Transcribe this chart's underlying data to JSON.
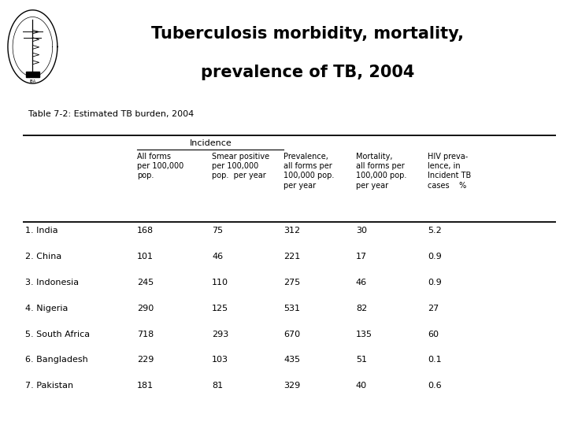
{
  "title_line1": "Tuberculosis morbidity, mortality,",
  "title_line2": "prevalence of TB, 2004",
  "table_title": "Table 7-2: Estimated TB burden, 2004",
  "col1_header": "All forms\nper 100,000\npop.",
  "col2_header": "Smear positive\nper 100,000\npop.  per year",
  "col3_header": "Prevalence,\nall forms per\n100,000 pop.\nper year",
  "col4_header": "Mortality,\nall forms per\n100,000 pop.\nper year",
  "col5_header": "HIV preva-\nlence, in\nIncident TB\ncases    %",
  "incidence_label": "Incidence",
  "rows": [
    {
      "country": "1. India",
      "c1": "168",
      "c2": "75",
      "c3": "312",
      "c4": "30",
      "c5": "5.2"
    },
    {
      "country": "2. China",
      "c1": "101",
      "c2": "46",
      "c3": "221",
      "c4": "17",
      "c5": "0.9"
    },
    {
      "country": "3. Indonesia",
      "c1": "245",
      "c2": "110",
      "c3": "275",
      "c4": "46",
      "c5": "0.9"
    },
    {
      "country": "4. Nigeria",
      "c1": "290",
      "c2": "125",
      "c3": "531",
      "c4": "82",
      "c5": "27"
    },
    {
      "country": "5. South Africa",
      "c1": "718",
      "c2": "293",
      "c3": "670",
      "c4": "135",
      "c5": "60"
    },
    {
      "country": "6. Bangladesh",
      "c1": "229",
      "c2": "103",
      "c3": "435",
      "c4": "51",
      "c5": "0.1"
    },
    {
      "country": "7. Pakistan",
      "c1": "181",
      "c2": "81",
      "c3": "329",
      "c4": "40",
      "c5": "0.6"
    }
  ],
  "bg_color": "#ffffff",
  "text_color": "#000000",
  "title_fontsize": 15,
  "table_title_fontsize": 8,
  "header_fontsize": 7.5,
  "data_fontsize": 8,
  "country_fontsize": 8
}
